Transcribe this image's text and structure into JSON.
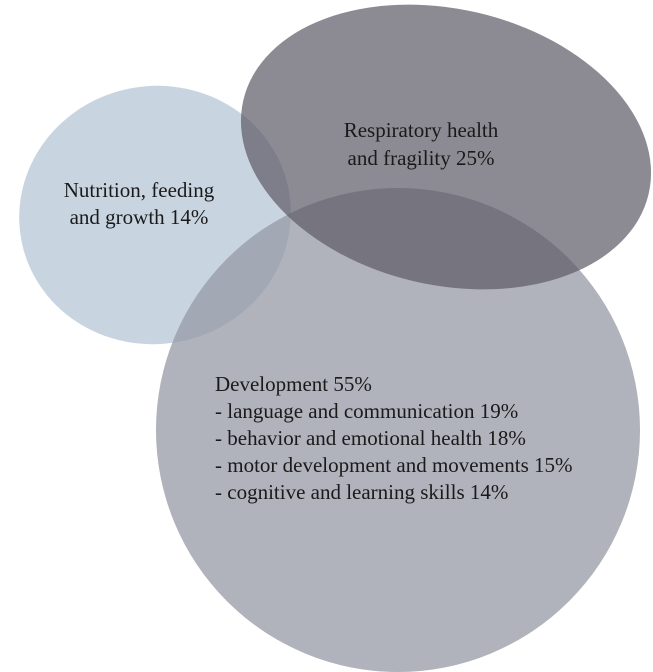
{
  "areas": [
    {
      "lines": [
        "Respiratory health",
        "and fragility 25%"
      ]
    },
    {
      "lines": [
        "Nutrition, feeding",
        "and growth 14%"
      ]
    },
    {
      "lines": [
        "Development 55%",
        "- language and communication 19%",
        "- behavior and emotional health 18%",
        "- motor development and movements 15%",
        "- cognitive and learning skills 14%"
      ]
    }
  ]
}
